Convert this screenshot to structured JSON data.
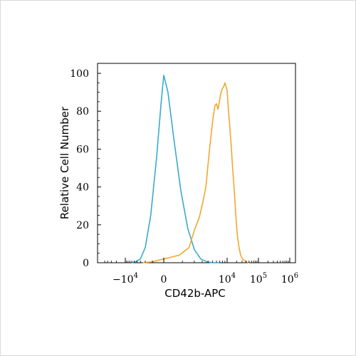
{
  "chart_data": {
    "type": "line",
    "title": "",
    "xlabel": "CD42b-APC",
    "ylabel": "Relative Cell Number",
    "x_scale": "biexponential",
    "xlim": [
      -50000,
      1000000
    ],
    "ylim": [
      0,
      100
    ],
    "y_ticks": [
      "0",
      "20",
      "40",
      "60",
      "80",
      "100"
    ],
    "x_ticks": [
      {
        "value": -10000,
        "base": "−10",
        "exp": "4"
      },
      {
        "value": 0,
        "base": "0",
        "exp": ""
      },
      {
        "value": 10000,
        "base": "10",
        "exp": "4"
      },
      {
        "value": 100000,
        "base": "10",
        "exp": "5"
      },
      {
        "value": 1000000,
        "base": "10",
        "exp": "6"
      }
    ],
    "grid": false,
    "legend": "none",
    "series": [
      {
        "color": "#3ba9cf",
        "x": [
          -6000,
          -4500,
          -3000,
          -2000,
          -1200,
          -600,
          -200,
          0,
          200,
          500,
          900,
          1400,
          2000,
          2800,
          3800,
          5000,
          7000
        ],
        "y": [
          0,
          0.5,
          2,
          8,
          25,
          55,
          85,
          99,
          90,
          65,
          38,
          18,
          7,
          2,
          0.5,
          0,
          0
        ]
      },
      {
        "color": "#f2a72e",
        "x": [
          -2500,
          -1000,
          0,
          800,
          1500,
          2000,
          2600,
          3100,
          3600,
          4000,
          4400,
          4800,
          5200,
          5600,
          6000,
          6500,
          7000,
          7500,
          8000,
          8500,
          9000,
          10000,
          11000,
          12000,
          13500,
          15000,
          17000,
          19000,
          21000,
          24000,
          27000,
          31000,
          36000,
          42000,
          50000
        ],
        "y": [
          0,
          0.5,
          2,
          4,
          8,
          17,
          24,
          32,
          40,
          52,
          62,
          71,
          78,
          83,
          84,
          81,
          86,
          90,
          92,
          93,
          95,
          91,
          81,
          73,
          62,
          50,
          38,
          25,
          15,
          8,
          4,
          2,
          1,
          0.5,
          0
        ]
      }
    ]
  }
}
